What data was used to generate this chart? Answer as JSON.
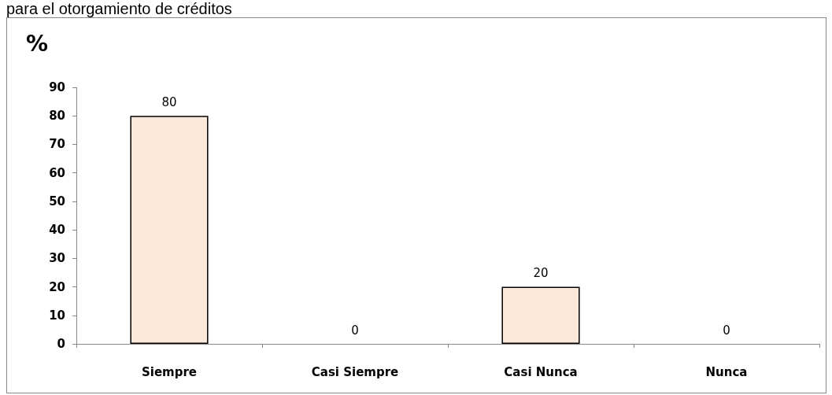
{
  "chart_data": {
    "type": "bar",
    "title": "para el otorgamiento de créditos",
    "ylabel": "%",
    "categories": [
      "Siempre",
      "Casi Siempre",
      "Casi Nunca",
      "Nunca"
    ],
    "values": [
      80,
      0,
      20,
      0
    ],
    "color": "#fde9d9",
    "ylim": [
      0,
      90
    ],
    "yticks": [
      0,
      10,
      20,
      30,
      40,
      50,
      60,
      70,
      80,
      90
    ],
    "grid": false,
    "data_labels": true
  }
}
